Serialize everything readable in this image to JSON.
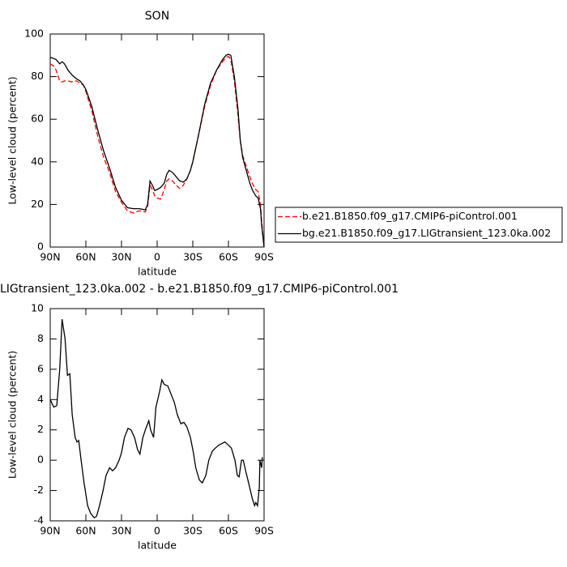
{
  "chart_data": [
    {
      "type": "line",
      "title": "SON",
      "x_label": "latitude",
      "y_label": "Low-level cloud (percent)",
      "xlim": [
        90,
        -90
      ],
      "xticks": [
        {
          "value": 90,
          "label": "90N"
        },
        {
          "value": 60,
          "label": "60N"
        },
        {
          "value": 30,
          "label": "30N"
        },
        0,
        {
          "value": -30,
          "label": "30S"
        },
        {
          "value": -60,
          "label": "60S"
        },
        {
          "value": -90,
          "label": "90S"
        }
      ],
      "ylim": [
        0,
        100
      ],
      "yticks": [
        0,
        20,
        40,
        60,
        80,
        100
      ],
      "legend": "right",
      "x": [
        90,
        87,
        85,
        82,
        80,
        78,
        75,
        72,
        70,
        68,
        65,
        62,
        60,
        55,
        50,
        45,
        40,
        35,
        30,
        25,
        20,
        15,
        10,
        8,
        6,
        4,
        2,
        0,
        -3,
        -6,
        -8,
        -10,
        -13,
        -16,
        -19,
        -22,
        -25,
        -28,
        -30,
        -35,
        -40,
        -45,
        -50,
        -55,
        -58,
        -60,
        -62,
        -65,
        -68,
        -70,
        -72,
        -75,
        -78,
        -80,
        -83,
        -85,
        -87,
        -88,
        -90
      ],
      "series": [
        {
          "name": "b.e21.B1850.f09_g17.CMIP6-piControl.001",
          "color": "#ff0000",
          "line_style": "dashed",
          "values": [
            86,
            85,
            83,
            78,
            77.5,
            78,
            78,
            77.5,
            78,
            78,
            77,
            76,
            73,
            64,
            52,
            42,
            35,
            26,
            21,
            17,
            16,
            17,
            16.5,
            19,
            29,
            27,
            24,
            23,
            22.5,
            27,
            31,
            32,
            31,
            29,
            27.5,
            29,
            32,
            36,
            40,
            53,
            66,
            76,
            83,
            87,
            89,
            89.5,
            88,
            78,
            62,
            50,
            43,
            38,
            33,
            30,
            27,
            26,
            20,
            12,
            0
          ]
        },
        {
          "name": "bg.e21.B1850.f09_g17.LIGtransient_123.0ka.002",
          "color": "#000000",
          "line_style": "solid",
          "values": [
            89,
            88.5,
            88,
            86,
            87,
            86,
            83,
            81,
            80,
            79,
            78,
            76,
            74,
            66,
            55,
            45,
            37,
            28,
            22,
            18.5,
            18,
            18,
            17.5,
            20,
            31,
            29,
            26.5,
            27,
            28,
            30,
            34,
            36,
            35,
            33,
            31,
            30.5,
            32,
            36,
            40,
            53,
            67,
            77,
            83,
            88,
            90,
            90.5,
            90,
            80,
            65,
            50,
            42,
            36,
            30,
            27,
            24,
            23,
            18,
            10,
            0
          ]
        }
      ]
    },
    {
      "type": "line",
      "title": "LIGtransient_123.0ka.002 - b.e21.B1850.f09_g17.CMIP6-piControl.001",
      "x_label": "latitude",
      "y_label": "Low-level cloud (percent)",
      "xlim": [
        90,
        -90
      ],
      "xticks": [
        {
          "value": 90,
          "label": "90N"
        },
        {
          "value": 60,
          "label": "60N"
        },
        {
          "value": 30,
          "label": "30N"
        },
        0,
        {
          "value": -30,
          "label": "30S"
        },
        {
          "value": -60,
          "label": "60S"
        },
        {
          "value": -90,
          "label": "90S"
        }
      ],
      "ylim": [
        -4,
        10
      ],
      "yticks": [
        -4,
        -2,
        0,
        2,
        4,
        6,
        8,
        10
      ],
      "color": "#000000",
      "x": [
        90,
        87,
        84.5,
        82,
        80,
        77.5,
        75.5,
        73.5,
        71.5,
        69,
        67.5,
        66,
        64,
        61.5,
        58.5,
        56,
        53,
        51,
        48.5,
        45.5,
        43,
        40,
        37.5,
        35,
        32,
        30,
        27.5,
        24.5,
        22,
        19,
        16.5,
        14.5,
        12,
        9.5,
        7,
        5.5,
        3,
        1,
        -2,
        -4,
        -6,
        -9,
        -11,
        -14.5,
        -17,
        -20,
        -22.5,
        -25,
        -28,
        -30.5,
        -32.5,
        -35.5,
        -38,
        -41,
        -43.5,
        -46.5,
        -49,
        -52,
        -54.5,
        -57,
        -60,
        -62.5,
        -65.5,
        -67.5,
        -69,
        -71,
        -72.5,
        -74.5,
        -77,
        -80,
        -82,
        -83,
        -84.5,
        -86,
        -86.5,
        -88,
        -88.5
      ],
      "values": [
        4,
        3.5,
        3.6,
        6,
        9.3,
        8,
        5.6,
        5.7,
        3,
        1.5,
        1.2,
        1.3,
        0,
        -1.5,
        -3,
        -3.5,
        -3.8,
        -3.7,
        -3,
        -2,
        -1,
        -0.5,
        -0.7,
        -0.5,
        0,
        0.5,
        1.5,
        2.1,
        2,
        1.5,
        0.7,
        0.4,
        1.5,
        2.1,
        2.6,
        2,
        1.5,
        3.5,
        4.5,
        5.3,
        5,
        4.9,
        4.5,
        3.8,
        3,
        2.4,
        2.5,
        2.2,
        1.5,
        0.5,
        -0.5,
        -1.3,
        -1.5,
        -1,
        0,
        0.6,
        0.8,
        1,
        1.1,
        1.2,
        1,
        0.8,
        0,
        -1,
        -1.1,
        0,
        0,
        -0.7,
        -1.5,
        -2.5,
        -3,
        -2.8,
        -3,
        -1.8,
        0,
        -0.5,
        0.2
      ]
    }
  ]
}
